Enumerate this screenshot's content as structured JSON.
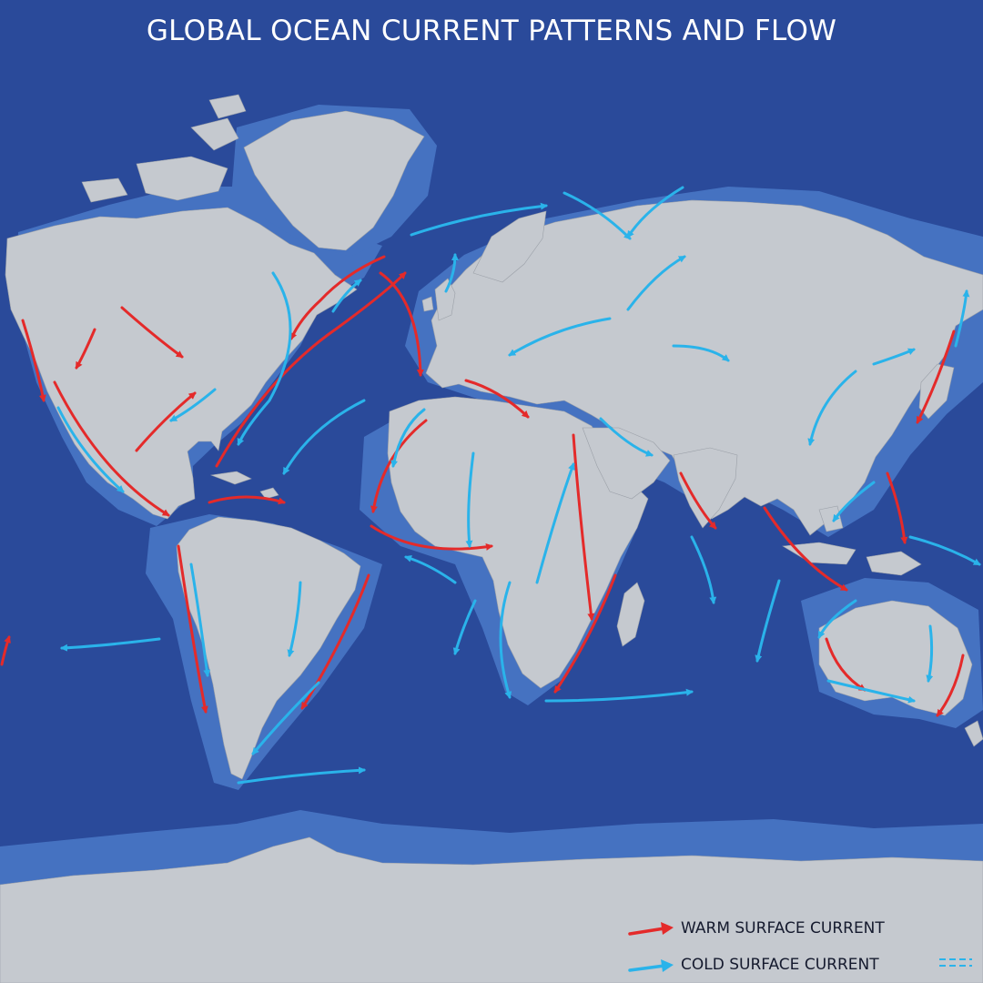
{
  "title": "GLOBAL OCEAN CURRENT PATTERNS AND FLOW",
  "legend": {
    "warm_label": "WARM SURFACE CURRENT",
    "cold_label": "COLD SURFACE CURRENT"
  },
  "colors": {
    "ocean": "#2a4a9a",
    "ocean_deep": "#243f8c",
    "shelf": "#4a79c8",
    "land": "#c5c9cf",
    "warm_current": "#e42a2a",
    "cold_current": "#2ab3ea"
  }
}
